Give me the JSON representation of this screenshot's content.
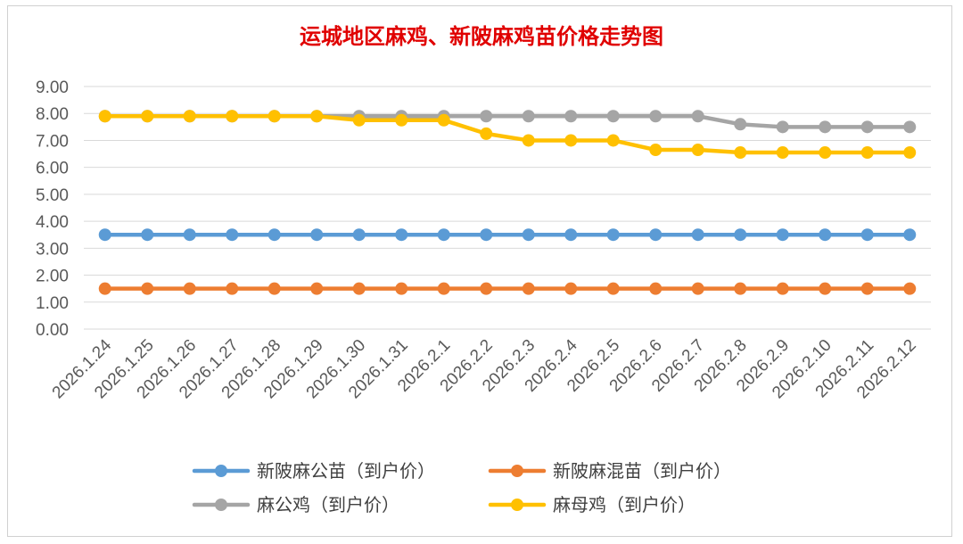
{
  "chart_data": {
    "type": "line",
    "title": "运城地区麻鸡、新陂麻鸡苗价格走势图",
    "xlabel": "",
    "ylabel": "",
    "ylim": [
      0,
      9
    ],
    "yticks": [
      "0.00",
      "1.00",
      "2.00",
      "3.00",
      "4.00",
      "5.00",
      "6.00",
      "7.00",
      "8.00",
      "9.00"
    ],
    "grid": true,
    "legend_position": "bottom",
    "categories": [
      "2026.1.24",
      "2026.1.25",
      "2026.1.26",
      "2026.1.27",
      "2026.1.28",
      "2026.1.29",
      "2026.1.30",
      "2026.1.31",
      "2026.2.1",
      "2026.2.2",
      "2026.2.3",
      "2026.2.4",
      "2026.2.5",
      "2026.2.6",
      "2026.2.7",
      "2026.2.8",
      "2026.2.9",
      "2026.2.10",
      "2026.2.11",
      "2026.2.12"
    ],
    "series": [
      {
        "name": "新陂麻公苗（到户价）",
        "color": "#5b9bd5",
        "values": [
          3.5,
          3.5,
          3.5,
          3.5,
          3.5,
          3.5,
          3.5,
          3.5,
          3.5,
          3.5,
          3.5,
          3.5,
          3.5,
          3.5,
          3.5,
          3.5,
          3.5,
          3.5,
          3.5,
          3.5
        ]
      },
      {
        "name": "新陂麻混苗（到户价）",
        "color": "#ed7d31",
        "values": [
          1.5,
          1.5,
          1.5,
          1.5,
          1.5,
          1.5,
          1.5,
          1.5,
          1.5,
          1.5,
          1.5,
          1.5,
          1.5,
          1.5,
          1.5,
          1.5,
          1.5,
          1.5,
          1.5,
          1.5
        ]
      },
      {
        "name": "麻公鸡（到户价）",
        "color": "#a5a5a5",
        "values": [
          7.9,
          7.9,
          7.9,
          7.9,
          7.9,
          7.9,
          7.9,
          7.9,
          7.9,
          7.9,
          7.9,
          7.9,
          7.9,
          7.9,
          7.9,
          7.6,
          7.5,
          7.5,
          7.5,
          7.5
        ]
      },
      {
        "name": "麻母鸡（到户价）",
        "color": "#ffc000",
        "values": [
          7.9,
          7.9,
          7.9,
          7.9,
          7.9,
          7.9,
          7.75,
          7.75,
          7.75,
          7.25,
          7.0,
          7.0,
          7.0,
          6.65,
          6.65,
          6.55,
          6.55,
          6.55,
          6.55,
          6.55
        ]
      }
    ]
  }
}
